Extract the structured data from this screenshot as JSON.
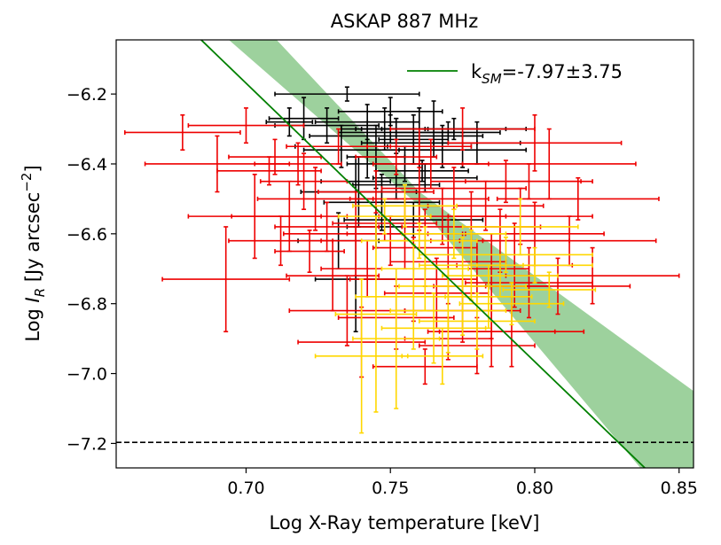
{
  "chart_data": {
    "type": "scatter",
    "title": "ASKAP 887 MHz",
    "xlabel": "Log X-Ray temperature [keV]",
    "ylabel": {
      "prefix": "Log ",
      "symbol": "I",
      "sub": "R",
      "units": " [Jy arcsec",
      "sup": "−2",
      "close": "]"
    },
    "xlim": [
      0.655,
      0.855
    ],
    "ylim": [
      -7.27,
      -6.045
    ],
    "xticks": [
      0.7,
      0.75,
      0.8,
      0.85
    ],
    "xtick_labels": [
      "0.70",
      "0.75",
      "0.80",
      "0.85"
    ],
    "yticks": [
      -6.2,
      -6.4,
      -6.6,
      -6.8,
      -7.0,
      -7.2
    ],
    "ytick_labels": [
      "−6.2",
      "−6.4",
      "−6.6",
      "−6.8",
      "−7.0",
      "−7.2"
    ],
    "fit": {
      "label_main": "k",
      "label_sub": "SM",
      "label_value": "=-7.97±3.75",
      "color": "#008000",
      "band_color": "#8cc98c",
      "slope": -7.97,
      "intercept": -0.59,
      "band": {
        "x": [
          0.66,
          0.76,
          0.855
        ],
        "lower": [
          -5.8,
          -6.52,
          -7.45
        ],
        "upper": [
          -5.6,
          -6.48,
          -7.05
        ]
      }
    },
    "threshold": {
      "y": -7.197,
      "color": "#000000",
      "style": "dashed"
    },
    "series": [
      {
        "name": "black",
        "color": "#000000",
        "points": [
          [
            0.735,
            -6.2,
            0.025,
            0.02
          ],
          [
            0.742,
            -6.28,
            0.018,
            0.05
          ],
          [
            0.748,
            -6.3,
            0.015,
            0.06
          ],
          [
            0.752,
            -6.31,
            0.02,
            0.04
          ],
          [
            0.758,
            -6.33,
            0.012,
            0.07
          ],
          [
            0.765,
            -6.3,
            0.025,
            0.08
          ],
          [
            0.77,
            -6.31,
            0.018,
            0.03
          ],
          [
            0.775,
            -6.36,
            0.022,
            0.05
          ],
          [
            0.78,
            -6.34,
            0.015,
            0.06
          ],
          [
            0.745,
            -6.38,
            0.01,
            0.09
          ],
          [
            0.755,
            -6.4,
            0.02,
            0.05
          ],
          [
            0.762,
            -6.44,
            0.018,
            0.04
          ],
          [
            0.738,
            -6.45,
            0.012,
            0.07
          ],
          [
            0.752,
            -6.46,
            0.015,
            0.04
          ],
          [
            0.76,
            -6.34,
            0.02,
            0.1
          ],
          [
            0.768,
            -6.35,
            0.01,
            0.06
          ],
          [
            0.742,
            -6.36,
            0.022,
            0.08
          ],
          [
            0.733,
            -6.35,
            0.016,
            0.06
          ],
          [
            0.75,
            -6.3,
            0.012,
            0.04
          ],
          [
            0.728,
            -6.29,
            0.018,
            0.05
          ],
          [
            0.72,
            -6.27,
            0.012,
            0.06
          ],
          [
            0.715,
            -6.28,
            0.008,
            0.04
          ],
          [
            0.747,
            -6.51,
            0.02,
            0.08
          ],
          [
            0.732,
            -6.62,
            0.014,
            0.08
          ],
          [
            0.745,
            -6.58,
            0.01,
            0.06
          ],
          [
            0.758,
            -6.56,
            0.024,
            0.05
          ],
          [
            0.738,
            -6.73,
            0.014,
            0.15
          ],
          [
            0.75,
            -6.25,
            0.018,
            0.04
          ],
          [
            0.752,
            -6.32,
            0.03,
            0.05
          ],
          [
            0.761,
            -6.42,
            0.016,
            0.03
          ],
          [
            0.772,
            -6.3,
            0.025,
            0.03
          ],
          [
            0.739,
            -6.48,
            0.02,
            0.1
          ]
        ]
      },
      {
        "name": "red",
        "color": "#ee0000",
        "points": [
          [
            0.678,
            -6.31,
            0.02,
            0.05
          ],
          [
            0.69,
            -6.4,
            0.025,
            0.08
          ],
          [
            0.693,
            -6.73,
            0.022,
            0.15
          ],
          [
            0.7,
            -6.29,
            0.02,
            0.05
          ],
          [
            0.703,
            -6.55,
            0.023,
            0.12
          ],
          [
            0.708,
            -6.42,
            0.018,
            0.04
          ],
          [
            0.71,
            -6.38,
            0.016,
            0.05
          ],
          [
            0.712,
            -6.62,
            0.018,
            0.07
          ],
          [
            0.715,
            -6.55,
            0.02,
            0.1
          ],
          [
            0.718,
            -6.4,
            0.015,
            0.06
          ],
          [
            0.72,
            -6.45,
            0.015,
            0.08
          ],
          [
            0.722,
            -6.65,
            0.012,
            0.06
          ],
          [
            0.724,
            -6.5,
            0.02,
            0.09
          ],
          [
            0.728,
            -6.58,
            0.018,
            0.07
          ],
          [
            0.73,
            -6.72,
            0.016,
            0.1
          ],
          [
            0.732,
            -6.35,
            0.018,
            0.05
          ],
          [
            0.735,
            -6.82,
            0.02,
            0.1
          ],
          [
            0.738,
            -6.6,
            0.025,
            0.12
          ],
          [
            0.74,
            -6.91,
            0.022,
            0.1
          ],
          [
            0.742,
            -6.7,
            0.016,
            0.08
          ],
          [
            0.745,
            -6.48,
            0.02,
            0.06
          ],
          [
            0.748,
            -6.57,
            0.018,
            0.05
          ],
          [
            0.75,
            -6.62,
            0.024,
            0.07
          ],
          [
            0.752,
            -6.84,
            0.02,
            0.09
          ],
          [
            0.755,
            -6.6,
            0.02,
            0.1
          ],
          [
            0.758,
            -6.73,
            0.022,
            0.12
          ],
          [
            0.76,
            -6.5,
            0.024,
            0.09
          ],
          [
            0.762,
            -6.64,
            0.018,
            0.11
          ],
          [
            0.764,
            -6.4,
            0.02,
            0.07
          ],
          [
            0.766,
            -6.77,
            0.018,
            0.1
          ],
          [
            0.768,
            -6.55,
            0.022,
            0.08
          ],
          [
            0.77,
            -6.68,
            0.02,
            0.12
          ],
          [
            0.772,
            -6.47,
            0.025,
            0.06
          ],
          [
            0.775,
            -6.82,
            0.02,
            0.09
          ],
          [
            0.778,
            -6.58,
            0.024,
            0.1
          ],
          [
            0.78,
            -6.7,
            0.018,
            0.08
          ],
          [
            0.783,
            -6.52,
            0.02,
            0.07
          ],
          [
            0.785,
            -6.88,
            0.022,
            0.1
          ],
          [
            0.788,
            -6.62,
            0.024,
            0.09
          ],
          [
            0.79,
            -6.45,
            0.026,
            0.06
          ],
          [
            0.793,
            -6.69,
            0.02,
            0.12
          ],
          [
            0.795,
            -6.55,
            0.025,
            0.08
          ],
          [
            0.798,
            -6.74,
            0.022,
            0.1
          ],
          [
            0.8,
            -6.6,
            0.024,
            0.09
          ],
          [
            0.805,
            -6.4,
            0.03,
            0.1
          ],
          [
            0.808,
            -6.75,
            0.025,
            0.08
          ],
          [
            0.812,
            -6.62,
            0.03,
            0.07
          ],
          [
            0.815,
            -6.5,
            0.028,
            0.06
          ],
          [
            0.82,
            -6.72,
            0.03,
            0.08
          ],
          [
            0.792,
            -6.88,
            0.025,
            0.1
          ],
          [
            0.78,
            -6.92,
            0.02,
            0.08
          ],
          [
            0.762,
            -6.98,
            0.018,
            0.05
          ],
          [
            0.77,
            -6.9,
            0.015,
            0.06
          ],
          [
            0.785,
            -6.75,
            0.02,
            0.15
          ],
          [
            0.798,
            -6.45,
            0.022,
            0.05
          ],
          [
            0.76,
            -6.35,
            0.018,
            0.05
          ],
          [
            0.752,
            -6.38,
            0.014,
            0.05
          ],
          [
            0.775,
            -6.3,
            0.025,
            0.06
          ],
          [
            0.8,
            -6.34,
            0.03,
            0.08
          ]
        ]
      },
      {
        "name": "yellow",
        "color": "#ffd700",
        "points": [
          [
            0.74,
            -6.95,
            0.016,
            0.22
          ],
          [
            0.745,
            -6.83,
            0.014,
            0.28
          ],
          [
            0.752,
            -6.9,
            0.015,
            0.2
          ],
          [
            0.758,
            -6.78,
            0.02,
            0.15
          ],
          [
            0.762,
            -6.7,
            0.015,
            0.12
          ],
          [
            0.765,
            -6.87,
            0.018,
            0.1
          ],
          [
            0.77,
            -6.82,
            0.02,
            0.12
          ],
          [
            0.775,
            -6.75,
            0.022,
            0.14
          ],
          [
            0.778,
            -6.69,
            0.018,
            0.1
          ],
          [
            0.78,
            -6.85,
            0.02,
            0.08
          ],
          [
            0.784,
            -6.78,
            0.015,
            0.09
          ],
          [
            0.788,
            -6.72,
            0.02,
            0.06
          ],
          [
            0.792,
            -6.8,
            0.018,
            0.06
          ],
          [
            0.795,
            -6.58,
            0.02,
            0.08
          ],
          [
            0.8,
            -6.69,
            0.02,
            0.05
          ],
          [
            0.805,
            -6.76,
            0.016,
            0.05
          ],
          [
            0.79,
            -6.66,
            0.03,
            0.05
          ],
          [
            0.772,
            -6.6,
            0.018,
            0.07
          ],
          [
            0.76,
            -6.62,
            0.02,
            0.05
          ],
          [
            0.755,
            -6.52,
            0.018,
            0.06
          ],
          [
            0.748,
            -6.55,
            0.016,
            0.05
          ],
          [
            0.768,
            -6.95,
            0.014,
            0.08
          ]
        ]
      }
    ]
  }
}
